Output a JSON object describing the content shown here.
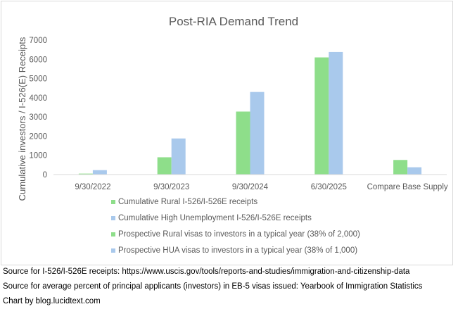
{
  "chart_data": {
    "type": "bar",
    "title": "Post-RIA Demand Trend",
    "xlabel": "",
    "ylabel": "Cumulative investors / I-526(E) Receipts",
    "ylim": [
      0,
      7000
    ],
    "yticks": [
      0,
      1000,
      2000,
      3000,
      4000,
      5000,
      6000,
      7000
    ],
    "grid": false,
    "legend_position": "bottom",
    "categories": [
      "9/30/2022",
      "9/30/2023",
      "9/30/2024",
      "6/30/2025",
      "Compare Base Supply"
    ],
    "series": [
      {
        "name": "Cumulative Rural I-526/I-526E receipts",
        "color": "#8ede8a",
        "values": [
          50,
          900,
          3280,
          6100,
          null
        ]
      },
      {
        "name": "Cumulative High Unemployment I-526/I-526E receipts",
        "color": "#a9c9ec",
        "values": [
          230,
          1880,
          4300,
          6380,
          null
        ]
      },
      {
        "name": "Prospective Rural visas to investors in a typical year (38% of 2,000)",
        "color": "#8ede8a",
        "values": [
          null,
          null,
          null,
          null,
          760
        ]
      },
      {
        "name": "Prospective HUA visas to investors in a typical year (38% of 1,000)",
        "color": "#a9c9ec",
        "values": [
          null,
          null,
          null,
          null,
          380
        ]
      }
    ]
  },
  "footer": {
    "source_receipts": "Source for I-526/I-526E receipts: https://www.uscis.gov/tools/reports-and-studies/immigration-and-citizenship-data",
    "source_percent": "Source for average percent of principal applicants (investors) in EB-5 visas issued: Yearbook of Immigration Statistics",
    "credit": "Chart by blog.lucidtext.com"
  }
}
